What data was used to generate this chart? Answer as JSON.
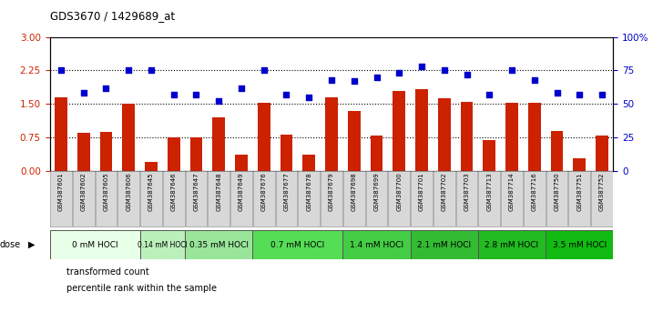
{
  "title": "GDS3670 / 1429689_at",
  "samples": [
    "GSM387601",
    "GSM387602",
    "GSM387605",
    "GSM387606",
    "GSM387645",
    "GSM387646",
    "GSM387647",
    "GSM387648",
    "GSM387649",
    "GSM387676",
    "GSM387677",
    "GSM387678",
    "GSM387679",
    "GSM387698",
    "GSM387699",
    "GSM387700",
    "GSM387701",
    "GSM387702",
    "GSM387703",
    "GSM387713",
    "GSM387714",
    "GSM387716",
    "GSM387750",
    "GSM387751",
    "GSM387752"
  ],
  "bar_values": [
    1.65,
    0.85,
    0.88,
    1.5,
    0.2,
    0.75,
    0.75,
    1.2,
    0.35,
    1.52,
    0.8,
    0.35,
    1.65,
    1.35,
    0.78,
    1.78,
    1.82,
    1.62,
    1.55,
    0.68,
    1.52,
    1.52,
    0.9,
    0.28,
    0.78
  ],
  "dot_values": [
    75,
    58,
    62,
    75,
    75,
    57,
    57,
    52,
    62,
    75,
    57,
    55,
    68,
    67,
    70,
    73,
    78,
    75,
    72,
    57,
    75,
    68,
    58,
    57,
    57
  ],
  "dose_groups": [
    {
      "label": "0 mM HOCl",
      "n": 4,
      "color": "#e8ffe8"
    },
    {
      "label": "0.14 mM HOCl",
      "n": 2,
      "color": "#bbf0bb"
    },
    {
      "label": "0.35 mM HOCl",
      "n": 3,
      "color": "#99e599"
    },
    {
      "label": "0.7 mM HOCl",
      "n": 4,
      "color": "#55dd55"
    },
    {
      "label": "1.4 mM HOCl",
      "n": 3,
      "color": "#44cc44"
    },
    {
      "label": "2.1 mM HOCl",
      "n": 3,
      "color": "#33bb33"
    },
    {
      "label": "2.8 mM HOCl",
      "n": 3,
      "color": "#22bb22"
    },
    {
      "label": "3.5 mM HOCl",
      "n": 3,
      "color": "#11bb11"
    }
  ],
  "bar_color": "#cc2200",
  "dot_color": "#0000cc",
  "ylim_left": [
    0,
    3
  ],
  "ylim_right": [
    0,
    100
  ],
  "yticks_left": [
    0,
    0.75,
    1.5,
    2.25,
    3
  ],
  "yticks_right": [
    0,
    25,
    50,
    75,
    100
  ]
}
